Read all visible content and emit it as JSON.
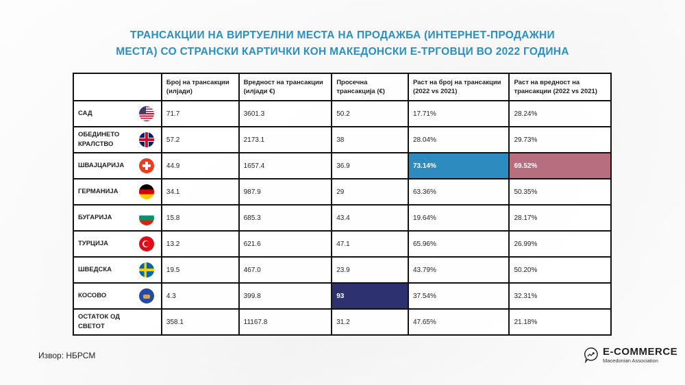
{
  "title_line1": "ТРАНСАКЦИИ НА ВИРТУЕЛНИ МЕСТА НА ПРОДАЖБА (ИНТЕРНЕТ-ПРОДАЖНИ",
  "title_line2": "МЕСТА) СО СТРАНСКИ КАРТИЧКИ КОН МАКЕДОНСКИ Е-ТРГОВЦИ ВО 2022 ГОДИНА",
  "headers": [
    "",
    "Број на трансакции (илјади)",
    "Вредност на трансакции (илјади €)",
    "Просечна трансакција (€)",
    "Раст на број на трансакции (2022 vs 2021)",
    "Раст на вредност на трансакции (2022 vs 2021)"
  ],
  "rows": [
    {
      "country": "САД",
      "flag": "us-flag",
      "values": [
        "71.7",
        "3601.3",
        "50.2",
        "17.71%",
        "28.24%"
      ]
    },
    {
      "country": "ОБЕДИНЕТО КРАЛСТВО",
      "flag": "uk-flag",
      "values": [
        "57.2",
        "2173.1",
        "38",
        "28.04%",
        "29.73%"
      ]
    },
    {
      "country": "ШВАЈЦАРИЈА",
      "flag": "swiss-flag",
      "values": [
        "44.9",
        "1657.4",
        "36.9",
        "73.14%",
        "69.52%"
      ]
    },
    {
      "country": "ГЕРМАНИЈА",
      "flag": "germany-flag",
      "values": [
        "34.1",
        "987.9",
        "29",
        "63.36%",
        "50.35%"
      ]
    },
    {
      "country": "БУГАРИЈА",
      "flag": "bulgaria-flag",
      "values": [
        "15.8",
        "685.3",
        "43.4",
        "19.64%",
        "28.17%"
      ]
    },
    {
      "country": "ТУРЦИЈА",
      "flag": "turkey-flag",
      "values": [
        "13.2",
        "621.6",
        "47.1",
        "65.96%",
        "26.99%"
      ]
    },
    {
      "country": "ШВЕДСКА",
      "flag": "sweden-flag",
      "values": [
        "19.5",
        "467.0",
        "23.9",
        "43.79%",
        "50.20%"
      ]
    },
    {
      "country": "КОСОВО",
      "flag": "kosovo-flag",
      "values": [
        "4.3",
        "399.8",
        "93",
        "37.54%",
        "32.31%"
      ]
    },
    {
      "country": "ОСТАТОК ОД СВЕТОТ",
      "flag": "",
      "values": [
        "358.1",
        "11167.8",
        "31.2",
        "47.65%",
        "21.18%"
      ]
    }
  ],
  "highlights": {
    "blue": "#2e8bc0",
    "pink": "#b76e7f",
    "navy": "#2e3170"
  },
  "source": "Извор: НБРСМ",
  "logo": {
    "name": "E-COMMERCE",
    "sub": "Macedonian Association"
  }
}
